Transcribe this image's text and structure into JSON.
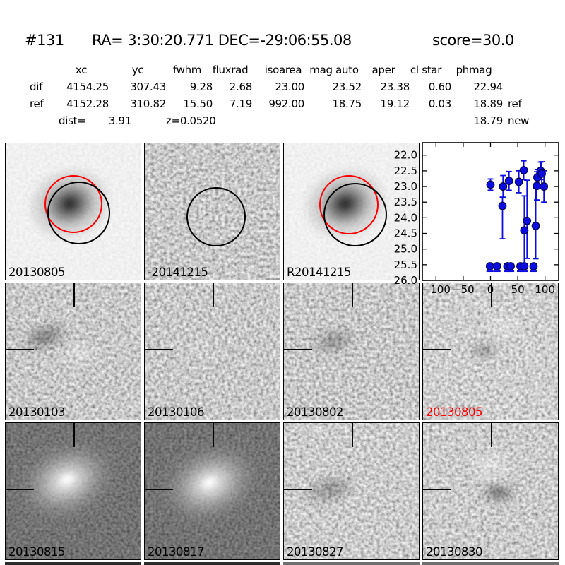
{
  "header": {
    "id": "#131",
    "ra_dec": "RA= 3:30:20.771 DEC=-29:06:55.08",
    "score": "score=30.0"
  },
  "photometry": {
    "columns": [
      "xc",
      "yc",
      "fwhm",
      "fluxrad",
      "isoarea",
      "mag auto",
      "aper",
      "cl star",
      "phmag"
    ],
    "rows": [
      {
        "label": "dif",
        "values": [
          "4154.25",
          "307.43",
          "9.28",
          "2.68",
          "23.00",
          "23.52",
          "23.38",
          "0.60",
          "22.94"
        ],
        "suffix": ""
      },
      {
        "label": "ref",
        "values": [
          "4152.28",
          "310.82",
          "15.50",
          "7.19",
          "992.00",
          "18.75",
          "19.12",
          "0.03",
          "18.89"
        ],
        "suffix": "ref"
      }
    ],
    "extra_phmag": {
      "value": "18.79",
      "suffix": "new"
    },
    "dist_label": "dist=",
    "dist_value": "3.91",
    "z_text": "z=0.0520"
  },
  "grid": {
    "cells": [
      {
        "label": "20130805",
        "color": "#000000"
      },
      {
        "label": "-20141215",
        "color": "#000000"
      },
      {
        "label": "R20141215",
        "color": "#000000"
      },
      {
        "label": "",
        "color": "#000000"
      },
      {
        "label": "20130103",
        "color": "#000000"
      },
      {
        "label": "20130106",
        "color": "#000000"
      },
      {
        "label": "20130802",
        "color": "#000000"
      },
      {
        "label": "20130805",
        "color": "#ff0000"
      },
      {
        "label": "20130815",
        "color": "#000000"
      },
      {
        "label": "20130817",
        "color": "#000000"
      },
      {
        "label": "20130827",
        "color": "#000000"
      },
      {
        "label": "20130830",
        "color": "#000000"
      }
    ]
  },
  "colors": {
    "marker_blue": "#0d0de0",
    "aperture_red": "#fa0000",
    "aperture_black": "#000000",
    "highlight_red": "#ff0000"
  },
  "chart_data": {
    "type": "scatter",
    "title": "",
    "xlabel": "",
    "ylabel": "",
    "legend": "none",
    "grid": "off",
    "y_inverted": true,
    "xlim": [
      -125,
      125
    ],
    "ylim": [
      26.0,
      21.6
    ],
    "x_ticks": [
      -100,
      -50,
      0,
      50,
      100
    ],
    "y_ticks": [
      22.0,
      22.5,
      23.0,
      23.5,
      24.0,
      24.5,
      25.0,
      25.5,
      26.0
    ],
    "marker_color": "#0d0de0",
    "series": [
      {
        "name": "detections",
        "marker": "circle-errorbar",
        "points": [
          {
            "x": 0,
            "mag": 22.94,
            "err_up": 0.18,
            "err_dn": 0.18
          },
          {
            "x": 22,
            "mag": 23.62,
            "err_up": 0.28,
            "err_dn": 1.05
          },
          {
            "x": 23,
            "mag": 23.0,
            "err_up": 0.35,
            "err_dn": 0.35
          },
          {
            "x": 34,
            "mag": 22.82,
            "err_up": 0.3,
            "err_dn": 0.3
          },
          {
            "x": 52,
            "mag": 22.85,
            "err_up": 0.35,
            "err_dn": 0.35
          },
          {
            "x": 61,
            "mag": 22.48,
            "err_up": 0.3,
            "err_dn": 0.3
          },
          {
            "x": 62,
            "mag": 24.4,
            "err_up": 1.1,
            "err_dn": 1.1
          },
          {
            "x": 67,
            "mag": 24.1,
            "err_up": 1.3,
            "err_dn": 1.2
          },
          {
            "x": 83,
            "mag": 24.26,
            "err_up": 1.2,
            "err_dn": 1.05
          },
          {
            "x": 85,
            "mag": 22.98,
            "err_up": 0.45,
            "err_dn": 0.45
          },
          {
            "x": 86,
            "mag": 22.71,
            "err_up": 0.25,
            "err_dn": 0.25
          },
          {
            "x": 92,
            "mag": 22.5,
            "err_up": 0.28,
            "err_dn": 0.28
          },
          {
            "x": 94,
            "mag": 22.59,
            "err_up": 0.38,
            "err_dn": 0.38
          },
          {
            "x": 98,
            "mag": 23.0,
            "err_up": 0.5,
            "err_dn": 0.5
          }
        ]
      },
      {
        "name": "upper-limits",
        "marker": "circle",
        "points": [
          {
            "x": -1,
            "mag": 25.55
          },
          {
            "x": 12,
            "mag": 25.55
          },
          {
            "x": 31,
            "mag": 25.55
          },
          {
            "x": 37,
            "mag": 25.55
          },
          {
            "x": 55,
            "mag": 25.55
          },
          {
            "x": 62,
            "mag": 25.55
          },
          {
            "x": 79,
            "mag": 25.55
          }
        ]
      }
    ]
  }
}
